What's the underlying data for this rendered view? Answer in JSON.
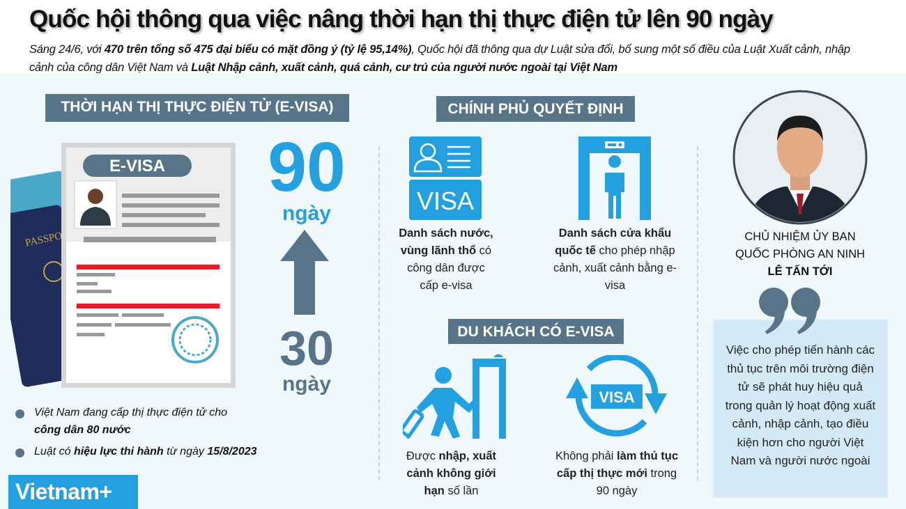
{
  "title": "Quốc hội thông qua việc nâng thời hạn thị thực điện tử lên 90 ngày",
  "subtitle": {
    "p1": "Sáng 24/6, với ",
    "b1": "470 trên tổng số 475 đại biểu có mặt đồng ý (tỷ lệ 95,14%)",
    "p2": ", Quốc hội đã thông qua dự Luật sửa đổi, bổ sung một số điều của Luật Xuất cảnh, nhập cảnh của công dân Việt Nam và ",
    "b2": "Luật Nhập cảnh, xuất cảnh, quá cảnh, cư trú của người nước ngoài tại Việt Nam"
  },
  "left": {
    "header": "THỜI HẠN THỊ THỰC ĐIỆN TỬ (E-VISA)",
    "card_label": "E-VISA",
    "passport_label": "PASSPORT",
    "new_value": "90",
    "new_unit": "ngày",
    "old_value": "30",
    "old_unit": "ngày",
    "bullets": [
      {
        "p1": "Việt Nam đang cấp thị thực điện tử cho",
        "b1": "công dân 80 nước"
      },
      {
        "p1": "Luật có ",
        "b1": "hiệu lực thi hành",
        "p2": " từ ngày ",
        "b2": "15/8/2023"
      }
    ]
  },
  "gov": {
    "header": "CHÍNH PHỦ QUYẾT ĐỊNH",
    "visa_icon_text": "VISA",
    "item1": {
      "b1": "Danh sách nước, vùng lãnh thổ",
      "p1": " có công dân được cấp e-visa"
    },
    "item2": {
      "b1": "Danh sách cửa khẩu quốc tế",
      "p1": " cho phép nhập cảnh, xuất cảnh bằng e-visa"
    }
  },
  "traveler": {
    "header": "DU KHÁCH CÓ E-VISA",
    "visa_icon_text": "VISA",
    "item1": {
      "p1": "Được ",
      "b1": "nhập, xuất cảnh không giới hạn",
      "p2": " số lần"
    },
    "item2": {
      "p1": "Không phải ",
      "b1": "làm thủ tục cấp thị thực mới",
      "p2": " trong 90 ngày"
    }
  },
  "person": {
    "role1": "CHỦ NHIỆM ỦY BAN",
    "role2": "QUỐC PHÒNG AN NINH",
    "name": "LÊ TẤN TỚI",
    "quote": "Việc cho phép tiến hành các thủ tục trên môi trường điện tử sẽ phát huy hiệu quả trong quản lý hoạt động xuất cảnh, nhập cảnh, tạo điều kiện hơn cho người Việt Nam và người nước ngoài"
  },
  "logo": "Vietnam+",
  "colors": {
    "accent_blue": "#22a0e0",
    "slate": "#587489",
    "red": "#e0202a",
    "background": "#f1f8fb",
    "quote_box": "#d3e9f5"
  }
}
